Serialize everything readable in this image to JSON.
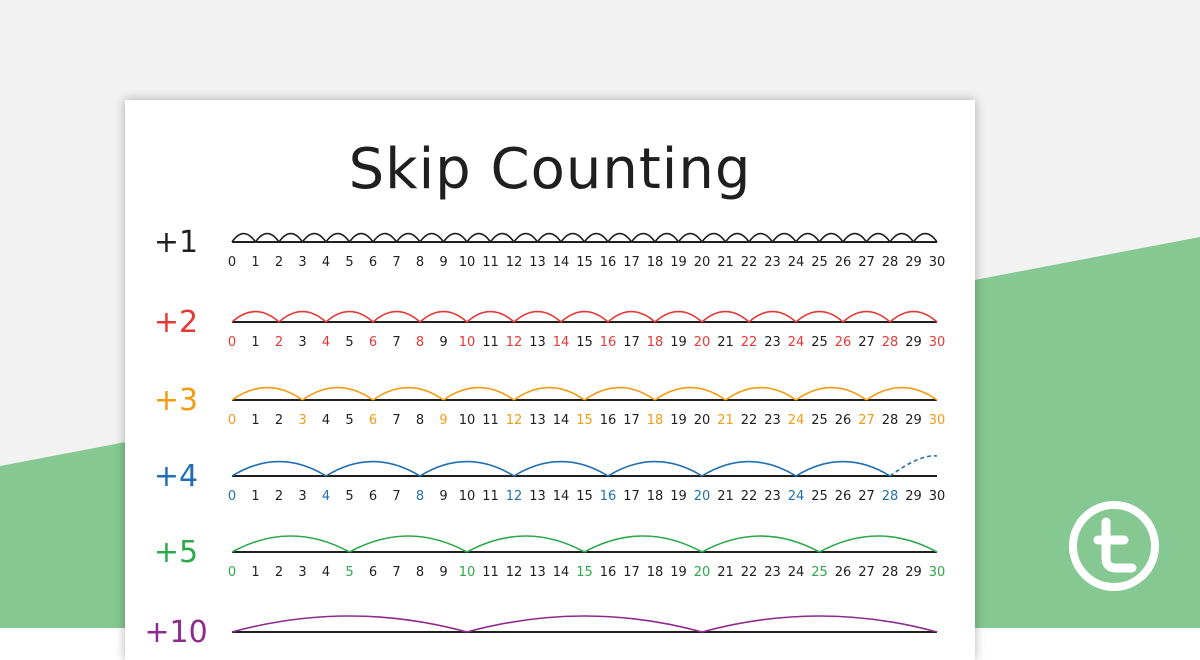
{
  "page": {
    "title": "Skip Counting"
  },
  "colors": {
    "background": "#f2f2f2",
    "band": "#85c891",
    "ink": "#1f1f1f",
    "logo": "#ffffff"
  },
  "number_lines": [
    {
      "label": "+1",
      "step": 1,
      "color": "#1f1f1f",
      "ticks": [
        "0",
        "1",
        "2",
        "3",
        "4",
        "5",
        "6",
        "7",
        "8",
        "9",
        "10",
        "11",
        "12",
        "13",
        "14",
        "15",
        "16",
        "17",
        "18",
        "19",
        "20",
        "21",
        "22",
        "23",
        "24",
        "25",
        "26",
        "27",
        "28",
        "29",
        "30"
      ]
    },
    {
      "label": "+2",
      "step": 2,
      "color": "#e53935",
      "ticks": [
        "0",
        "1",
        "2",
        "3",
        "4",
        "5",
        "6",
        "7",
        "8",
        "9",
        "10",
        "11",
        "12",
        "13",
        "14",
        "15",
        "16",
        "17",
        "18",
        "19",
        "20",
        "21",
        "22",
        "23",
        "24",
        "25",
        "26",
        "27",
        "28",
        "29",
        "30"
      ]
    },
    {
      "label": "+3",
      "step": 3,
      "color": "#f39c12",
      "ticks": [
        "0",
        "1",
        "2",
        "3",
        "4",
        "5",
        "6",
        "7",
        "8",
        "9",
        "10",
        "11",
        "12",
        "13",
        "14",
        "15",
        "16",
        "17",
        "18",
        "19",
        "20",
        "21",
        "22",
        "23",
        "24",
        "25",
        "26",
        "27",
        "28",
        "29",
        "30"
      ]
    },
    {
      "label": "+4",
      "step": 4,
      "color": "#1f6fb2",
      "ticks": [
        "0",
        "1",
        "2",
        "3",
        "4",
        "5",
        "6",
        "7",
        "8",
        "9",
        "10",
        "11",
        "12",
        "13",
        "14",
        "15",
        "16",
        "17",
        "18",
        "19",
        "20",
        "21",
        "22",
        "23",
        "24",
        "25",
        "26",
        "27",
        "28",
        "29",
        "30"
      ],
      "dashed_last": true
    },
    {
      "label": "+5",
      "step": 5,
      "color": "#2ea84a",
      "ticks": [
        "0",
        "1",
        "2",
        "3",
        "4",
        "5",
        "6",
        "7",
        "8",
        "9",
        "10",
        "11",
        "12",
        "13",
        "14",
        "15",
        "16",
        "17",
        "18",
        "19",
        "20",
        "21",
        "22",
        "23",
        "24",
        "25",
        "26",
        "27",
        "28",
        "29",
        "30"
      ]
    },
    {
      "label": "+10",
      "step": 10,
      "color": "#8e2a8e",
      "ticks": []
    }
  ],
  "logo": {
    "icon": "teachstarter-t-icon"
  }
}
